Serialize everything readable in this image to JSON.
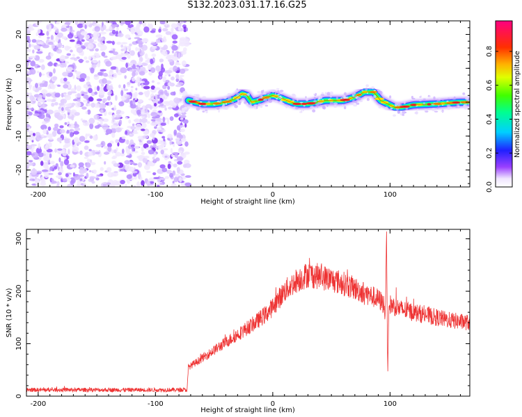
{
  "title": "S132.2023.031.17.16.G25",
  "colors": {
    "snr_line": "#ee3333",
    "axis": "#000000",
    "noise": "#8a2be2"
  },
  "chart_data": [
    {
      "type": "heatmap",
      "xlabel": "Height of straight line (km)",
      "ylabel": "Frequency (Hz)",
      "xlim": [
        -210,
        168
      ],
      "ylim": [
        -25,
        24
      ],
      "xticks": [
        -200,
        -100,
        0,
        100
      ],
      "yticks": [
        -20,
        -10,
        0,
        10,
        20
      ],
      "noise_region_x": [
        -210,
        -72
      ],
      "colorbar": {
        "label": "Normalized spectral amplitude",
        "range": [
          0,
          0.98
        ],
        "ticks": [
          "0.0",
          "0.2",
          "0.4",
          "0.6",
          "0.8"
        ],
        "tick_values": [
          0.0,
          0.2,
          0.4,
          0.6,
          0.8
        ]
      },
      "ridge": {
        "x": [
          -72,
          -60,
          -50,
          -40,
          -32,
          -26,
          -22,
          -18,
          -12,
          -5,
          0,
          5,
          12,
          20,
          30,
          45,
          60,
          70,
          78,
          86,
          92,
          98,
          104,
          110,
          120,
          140,
          160,
          168
        ],
        "freq": [
          0.5,
          -0.5,
          -0.5,
          0.0,
          1.0,
          2.5,
          2.0,
          0.0,
          0.5,
          1.5,
          2.0,
          1.5,
          0.5,
          -0.5,
          -0.5,
          0.5,
          0.5,
          1.5,
          3.0,
          3.0,
          0.5,
          -0.5,
          -1.5,
          -1.5,
          -0.8,
          -0.5,
          0.0,
          0.0
        ]
      }
    },
    {
      "type": "line",
      "xlabel": "Height of straight line (km)",
      "ylabel": "SNR (10 * v/v)",
      "xlim": [
        -210,
        168
      ],
      "ylim": [
        0,
        318
      ],
      "xticks": [
        -200,
        -100,
        0,
        100
      ],
      "yticks": [
        0,
        100,
        200,
        300
      ],
      "series": [
        {
          "x": [
            -210,
            -150,
            -100,
            -73,
            -72,
            -65,
            -55,
            -45,
            -35,
            -25,
            -15,
            -5,
            0,
            10,
            20,
            30,
            40,
            50,
            60,
            70,
            80,
            90,
            95,
            96,
            97,
            98,
            99,
            100,
            110,
            120,
            130,
            140,
            150,
            160,
            168
          ],
          "y": [
            12,
            12,
            12,
            12,
            55,
            65,
            80,
            95,
            110,
            125,
            140,
            158,
            170,
            200,
            220,
            232,
            228,
            222,
            215,
            205,
            195,
            185,
            175,
            150,
            318,
            40,
            170,
            175,
            165,
            160,
            155,
            150,
            145,
            142,
            140
          ]
        }
      ]
    }
  ]
}
